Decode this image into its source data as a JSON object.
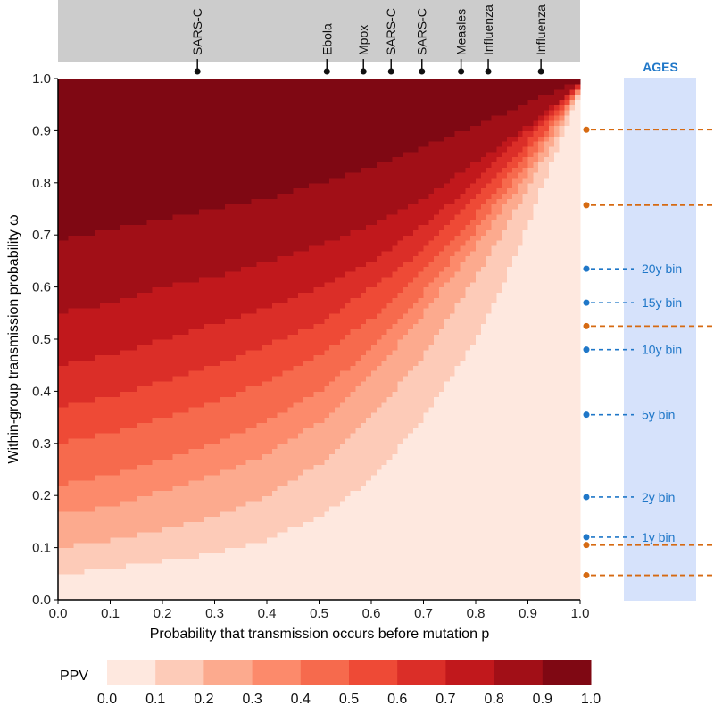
{
  "chart_data": {
    "type": "heatmap",
    "xlabel": "Probability that transmission occurs before mutation p",
    "ylabel": "Within-group transmission probability ω",
    "xlim": [
      0,
      1
    ],
    "ylim": [
      0,
      1
    ],
    "x_ticks": [
      "0.0",
      "0.1",
      "0.2",
      "0.3",
      "0.4",
      "0.5",
      "0.6",
      "0.7",
      "0.8",
      "0.9",
      "1.0"
    ],
    "y_ticks": [
      "0.0",
      "0.1",
      "0.2",
      "0.3",
      "0.4",
      "0.5",
      "0.6",
      "0.7",
      "0.8",
      "0.9",
      "1.0"
    ],
    "grid_resolution": 100,
    "contour_boundaries": [
      {
        "level": 0.1,
        "points": [
          [
            0.0,
            0.05
          ],
          [
            0.1,
            0.06
          ],
          [
            0.2,
            0.075
          ],
          [
            0.3,
            0.09
          ],
          [
            0.4,
            0.115
          ],
          [
            0.5,
            0.16
          ],
          [
            0.6,
            0.23
          ],
          [
            0.7,
            0.35
          ],
          [
            0.8,
            0.5
          ],
          [
            0.85,
            0.6
          ],
          [
            0.9,
            0.72
          ],
          [
            0.95,
            0.85
          ],
          [
            1.0,
            0.975
          ]
        ]
      },
      {
        "level": 0.2,
        "points": [
          [
            0.0,
            0.1
          ],
          [
            0.1,
            0.115
          ],
          [
            0.2,
            0.135
          ],
          [
            0.3,
            0.16
          ],
          [
            0.4,
            0.2
          ],
          [
            0.5,
            0.26
          ],
          [
            0.6,
            0.35
          ],
          [
            0.7,
            0.47
          ],
          [
            0.8,
            0.62
          ],
          [
            0.85,
            0.7
          ],
          [
            0.9,
            0.79
          ],
          [
            0.95,
            0.88
          ],
          [
            1.0,
            0.98
          ]
        ]
      },
      {
        "level": 0.3,
        "points": [
          [
            0.0,
            0.165
          ],
          [
            0.1,
            0.18
          ],
          [
            0.2,
            0.21
          ],
          [
            0.3,
            0.24
          ],
          [
            0.4,
            0.28
          ],
          [
            0.5,
            0.34
          ],
          [
            0.6,
            0.43
          ],
          [
            0.7,
            0.55
          ],
          [
            0.8,
            0.68
          ],
          [
            0.9,
            0.82
          ],
          [
            0.95,
            0.9
          ],
          [
            1.0,
            0.98
          ]
        ]
      },
      {
        "level": 0.4,
        "points": [
          [
            0.0,
            0.22
          ],
          [
            0.1,
            0.24
          ],
          [
            0.2,
            0.27
          ],
          [
            0.3,
            0.3
          ],
          [
            0.4,
            0.345
          ],
          [
            0.5,
            0.4
          ],
          [
            0.6,
            0.48
          ],
          [
            0.7,
            0.59
          ],
          [
            0.8,
            0.71
          ],
          [
            0.9,
            0.84
          ],
          [
            1.0,
            0.985
          ]
        ]
      },
      {
        "level": 0.5,
        "points": [
          [
            0.0,
            0.3
          ],
          [
            0.1,
            0.32
          ],
          [
            0.2,
            0.35
          ],
          [
            0.3,
            0.38
          ],
          [
            0.4,
            0.42
          ],
          [
            0.5,
            0.47
          ],
          [
            0.6,
            0.54
          ],
          [
            0.7,
            0.63
          ],
          [
            0.8,
            0.74
          ],
          [
            0.9,
            0.86
          ],
          [
            1.0,
            0.985
          ]
        ]
      },
      {
        "level": 0.6,
        "points": [
          [
            0.0,
            0.37
          ],
          [
            0.1,
            0.39
          ],
          [
            0.2,
            0.42
          ],
          [
            0.3,
            0.45
          ],
          [
            0.4,
            0.49
          ],
          [
            0.5,
            0.53
          ],
          [
            0.6,
            0.6
          ],
          [
            0.7,
            0.67
          ],
          [
            0.8,
            0.77
          ],
          [
            0.9,
            0.88
          ],
          [
            1.0,
            0.99
          ]
        ]
      },
      {
        "level": 0.7,
        "points": [
          [
            0.0,
            0.45
          ],
          [
            0.1,
            0.47
          ],
          [
            0.2,
            0.5
          ],
          [
            0.3,
            0.53
          ],
          [
            0.4,
            0.56
          ],
          [
            0.5,
            0.6
          ],
          [
            0.6,
            0.65
          ],
          [
            0.7,
            0.72
          ],
          [
            0.8,
            0.8
          ],
          [
            0.9,
            0.9
          ],
          [
            1.0,
            0.99
          ]
        ]
      },
      {
        "level": 0.8,
        "points": [
          [
            0.0,
            0.55
          ],
          [
            0.1,
            0.57
          ],
          [
            0.2,
            0.6
          ],
          [
            0.3,
            0.62
          ],
          [
            0.4,
            0.65
          ],
          [
            0.5,
            0.68
          ],
          [
            0.6,
            0.72
          ],
          [
            0.7,
            0.77
          ],
          [
            0.8,
            0.84
          ],
          [
            0.9,
            0.91
          ],
          [
            1.0,
            0.99
          ]
        ]
      },
      {
        "level": 0.9,
        "points": [
          [
            0.0,
            0.69
          ],
          [
            0.1,
            0.71
          ],
          [
            0.2,
            0.73
          ],
          [
            0.3,
            0.75
          ],
          [
            0.4,
            0.77
          ],
          [
            0.5,
            0.8
          ],
          [
            0.6,
            0.83
          ],
          [
            0.7,
            0.87
          ],
          [
            0.8,
            0.91
          ],
          [
            0.9,
            0.955
          ],
          [
            1.0,
            0.995
          ]
        ]
      }
    ],
    "colorbar": {
      "title": "PPV",
      "ticks": [
        "0.0",
        "0.1",
        "0.2",
        "0.3",
        "0.4",
        "0.5",
        "0.6",
        "0.7",
        "0.8",
        "0.9",
        "1.0"
      ],
      "colors": [
        "#fee8df",
        "#fdcbb8",
        "#fcaa8e",
        "#fc8a6b",
        "#f66a4d",
        "#ee4a36",
        "#db2e28",
        "#c1181c",
        "#a10f17",
        "#7f0813"
      ]
    },
    "top_markers": {
      "band_color": "#cccccc",
      "items": [
        {
          "label": "SARS-C",
          "x": 0.267
        },
        {
          "label": "Ebola",
          "x": 0.515
        },
        {
          "label": "Mpox",
          "x": 0.585
        },
        {
          "label": "SARS-C",
          "x": 0.638
        },
        {
          "label": "SARS-C",
          "x": 0.697
        },
        {
          "label": "Measles",
          "x": 0.772
        },
        {
          "label": "Influenza",
          "x": 0.824
        },
        {
          "label": "Influenza",
          "x": 0.925
        }
      ]
    },
    "ages_panel": {
      "title": "AGES",
      "color": "#1f77c8",
      "panel_color": "#d6e2fb",
      "bins": [
        {
          "label": "20y bin",
          "y": 0.635
        },
        {
          "label": "15y bin",
          "y": 0.57
        },
        {
          "label": "10y bin",
          "y": 0.48
        },
        {
          "label": "5y bin",
          "y": 0.355
        },
        {
          "label": "2y bin",
          "y": 0.197
        },
        {
          "label": "1y bin",
          "y": 0.12
        }
      ]
    },
    "orange_markers": {
      "color": "#d66a12",
      "y": [
        0.902,
        0.757,
        0.525,
        0.105,
        0.047
      ]
    }
  }
}
